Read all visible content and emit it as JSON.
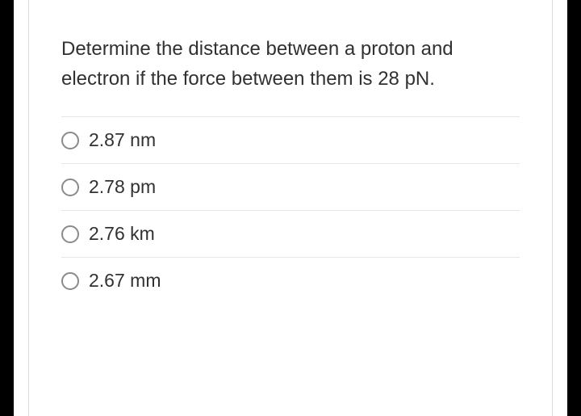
{
  "question": {
    "text": "Determine the distance between a proton and electron if the force between them is 28 pN."
  },
  "options": [
    {
      "label": "2.87 nm",
      "selected": false
    },
    {
      "label": "2.78 pm",
      "selected": false
    },
    {
      "label": "2.76 km",
      "selected": false
    },
    {
      "label": "2.67 mm",
      "selected": false
    }
  ],
  "colors": {
    "background": "#000000",
    "card_bg": "#ffffff",
    "border": "#dcdcdc",
    "divider": "#e6e6e6",
    "text": "#313131",
    "radio_border": "#8a8a8a"
  },
  "typography": {
    "question_fontsize": 24,
    "option_fontsize": 23,
    "line_height": 1.55
  }
}
